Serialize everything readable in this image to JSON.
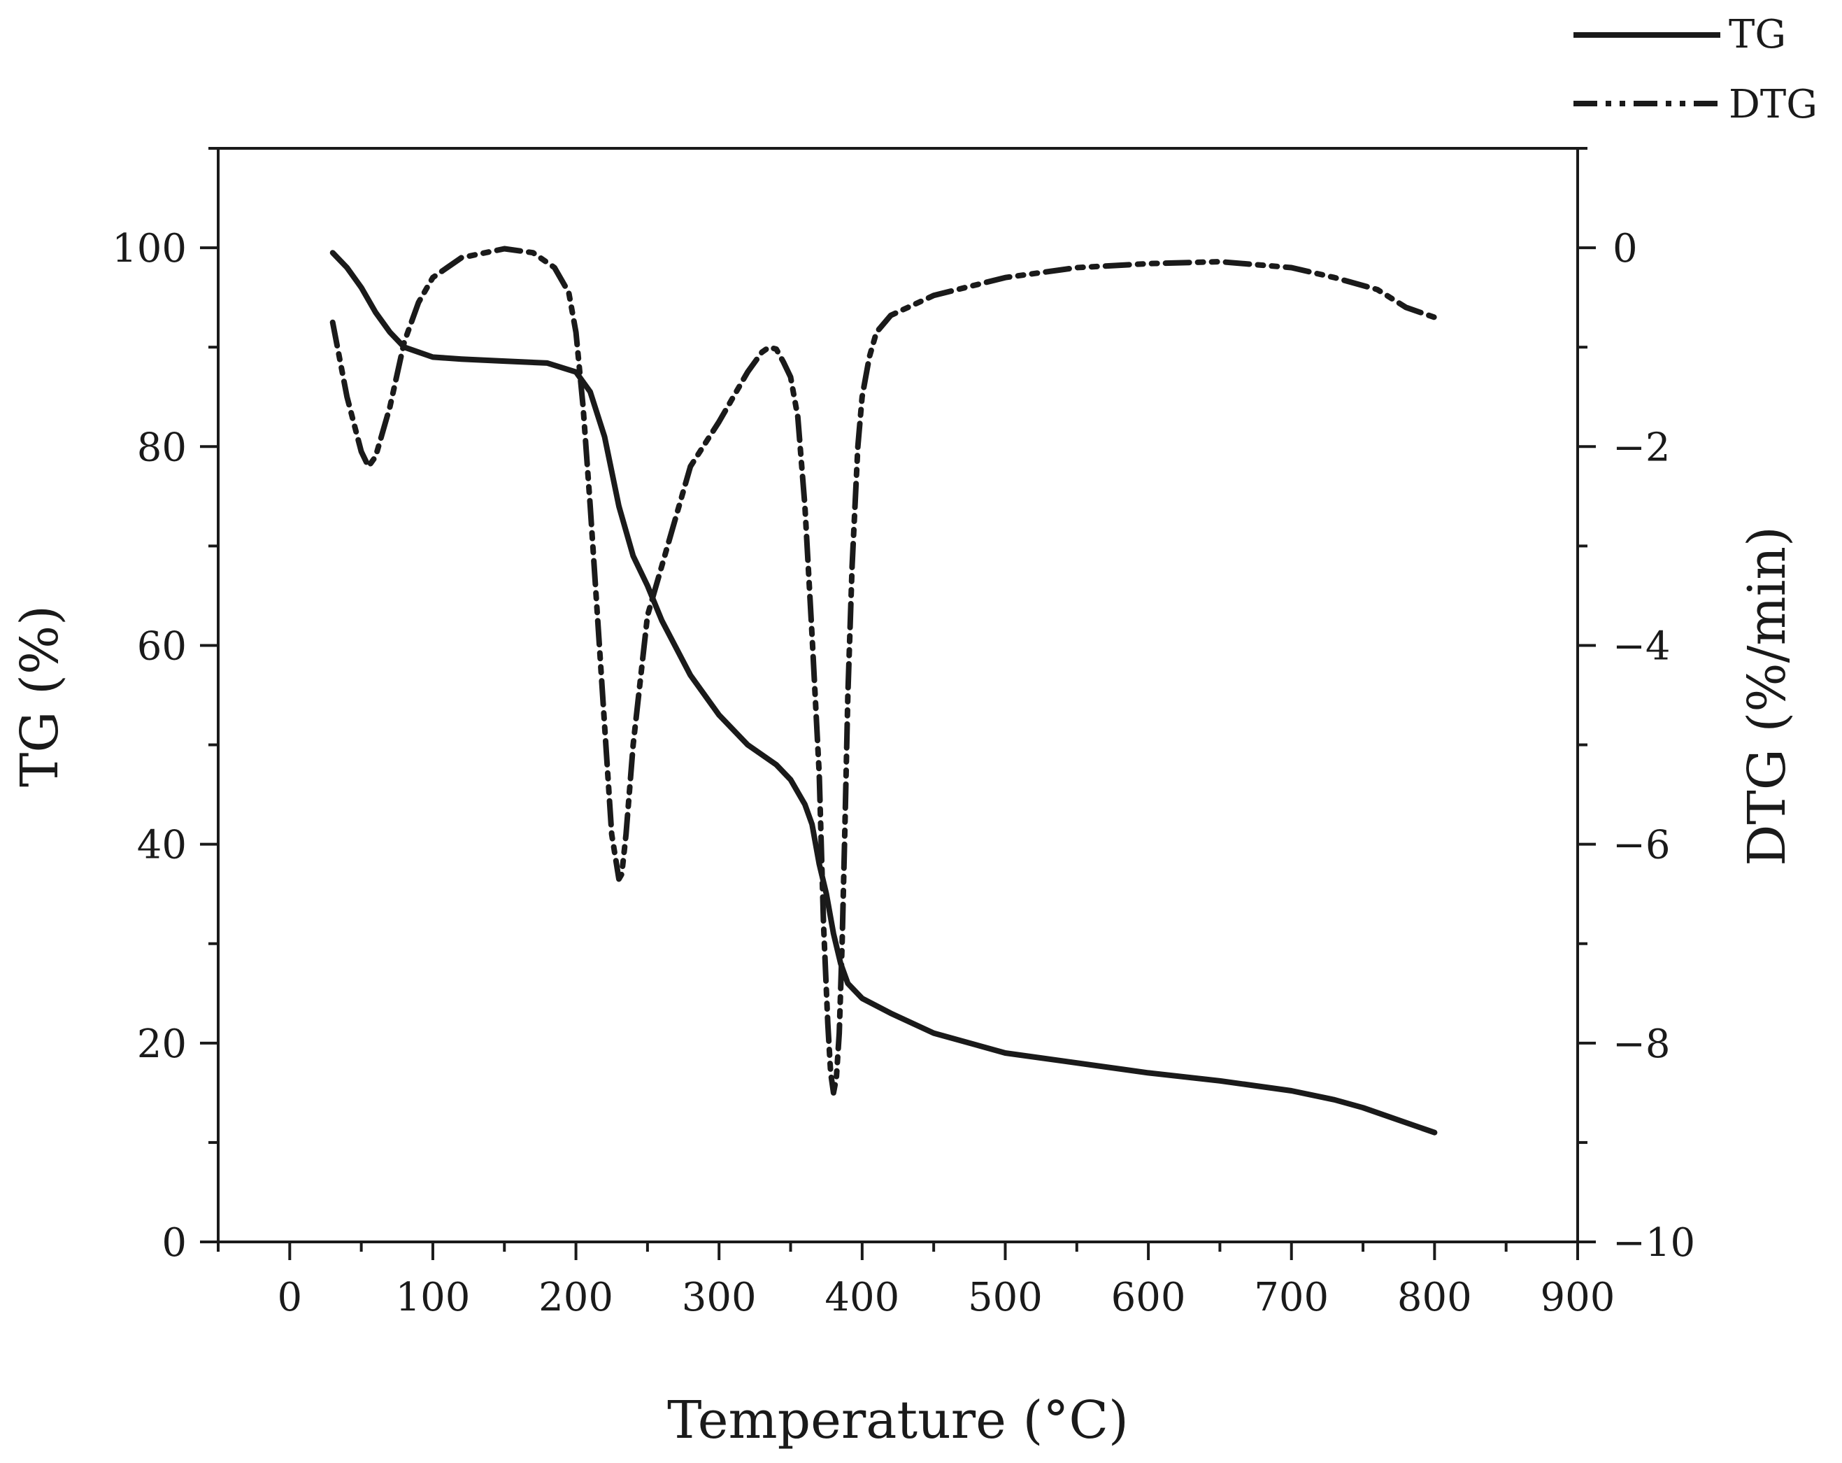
{
  "chart_data": {
    "type": "line",
    "title": "",
    "xlabel": "Temperature (°C)",
    "ylabel": "TG (%)",
    "y2label": "DTG (%/min)",
    "xlim": [
      -50,
      900
    ],
    "ylim": [
      0,
      110
    ],
    "y2lim": [
      -10,
      1
    ],
    "x_ticks": [
      0,
      100,
      200,
      300,
      400,
      500,
      600,
      700,
      800,
      900
    ],
    "y_ticks": [
      0,
      20,
      40,
      60,
      80,
      100
    ],
    "y2_ticks": [
      {
        "value": -10,
        "label": "−10"
      },
      {
        "value": -8,
        "label": "−8"
      },
      {
        "value": -6,
        "label": "−6"
      },
      {
        "value": -4,
        "label": "−4"
      },
      {
        "value": -2,
        "label": "−2"
      },
      {
        "value": 0,
        "label": "0"
      }
    ],
    "legend": {
      "position": "top-right",
      "entries": [
        "TG",
        "DTG"
      ]
    },
    "series": [
      {
        "name": "TG",
        "axis": "left",
        "style": "solid",
        "x": [
          30,
          40,
          50,
          60,
          70,
          80,
          90,
          100,
          120,
          150,
          180,
          200,
          210,
          220,
          230,
          240,
          250,
          260,
          280,
          300,
          320,
          340,
          350,
          360,
          365,
          370,
          375,
          380,
          385,
          390,
          400,
          420,
          450,
          500,
          550,
          600,
          650,
          700,
          730,
          750,
          780,
          800
        ],
        "values": [
          99.5,
          98,
          96,
          93.5,
          91.5,
          90,
          89.5,
          89,
          88.8,
          88.6,
          88.4,
          87.5,
          85.5,
          81,
          74,
          69,
          66,
          62.5,
          57,
          53,
          50,
          48,
          46.5,
          44,
          42,
          38,
          35,
          31,
          28,
          26,
          24.5,
          23,
          21,
          19,
          18,
          17,
          16.2,
          15.2,
          14.3,
          13.5,
          12,
          11
        ]
      },
      {
        "name": "DTG",
        "axis": "right",
        "style": "dash-dot-dot",
        "x": [
          30,
          40,
          50,
          55,
          60,
          70,
          80,
          90,
          100,
          120,
          150,
          170,
          185,
          195,
          200,
          205,
          210,
          215,
          220,
          225,
          230,
          232,
          235,
          240,
          250,
          260,
          280,
          300,
          320,
          330,
          335,
          340,
          345,
          350,
          355,
          360,
          365,
          370,
          373,
          376,
          378,
          380,
          382,
          384,
          386,
          388,
          390,
          393,
          397,
          400,
          405,
          410,
          420,
          450,
          500,
          550,
          600,
          650,
          700,
          730,
          760,
          780,
          800
        ],
        "values": [
          -0.75,
          -1.5,
          -2.05,
          -2.2,
          -2.1,
          -1.6,
          -0.95,
          -0.55,
          -0.3,
          -0.1,
          -0.01,
          -0.05,
          -0.2,
          -0.45,
          -0.85,
          -1.6,
          -2.6,
          -3.7,
          -4.8,
          -5.9,
          -6.35,
          -6.3,
          -5.9,
          -5.0,
          -3.7,
          -3.2,
          -2.2,
          -1.75,
          -1.25,
          -1.05,
          -1.0,
          -1.02,
          -1.15,
          -1.3,
          -1.7,
          -2.6,
          -3.9,
          -5.3,
          -6.8,
          -7.8,
          -8.3,
          -8.5,
          -8.35,
          -7.9,
          -7.0,
          -5.8,
          -4.5,
          -3.2,
          -2.0,
          -1.5,
          -1.1,
          -0.85,
          -0.68,
          -0.48,
          -0.3,
          -0.2,
          -0.16,
          -0.14,
          -0.2,
          -0.3,
          -0.42,
          -0.6,
          -0.7
        ]
      }
    ]
  }
}
